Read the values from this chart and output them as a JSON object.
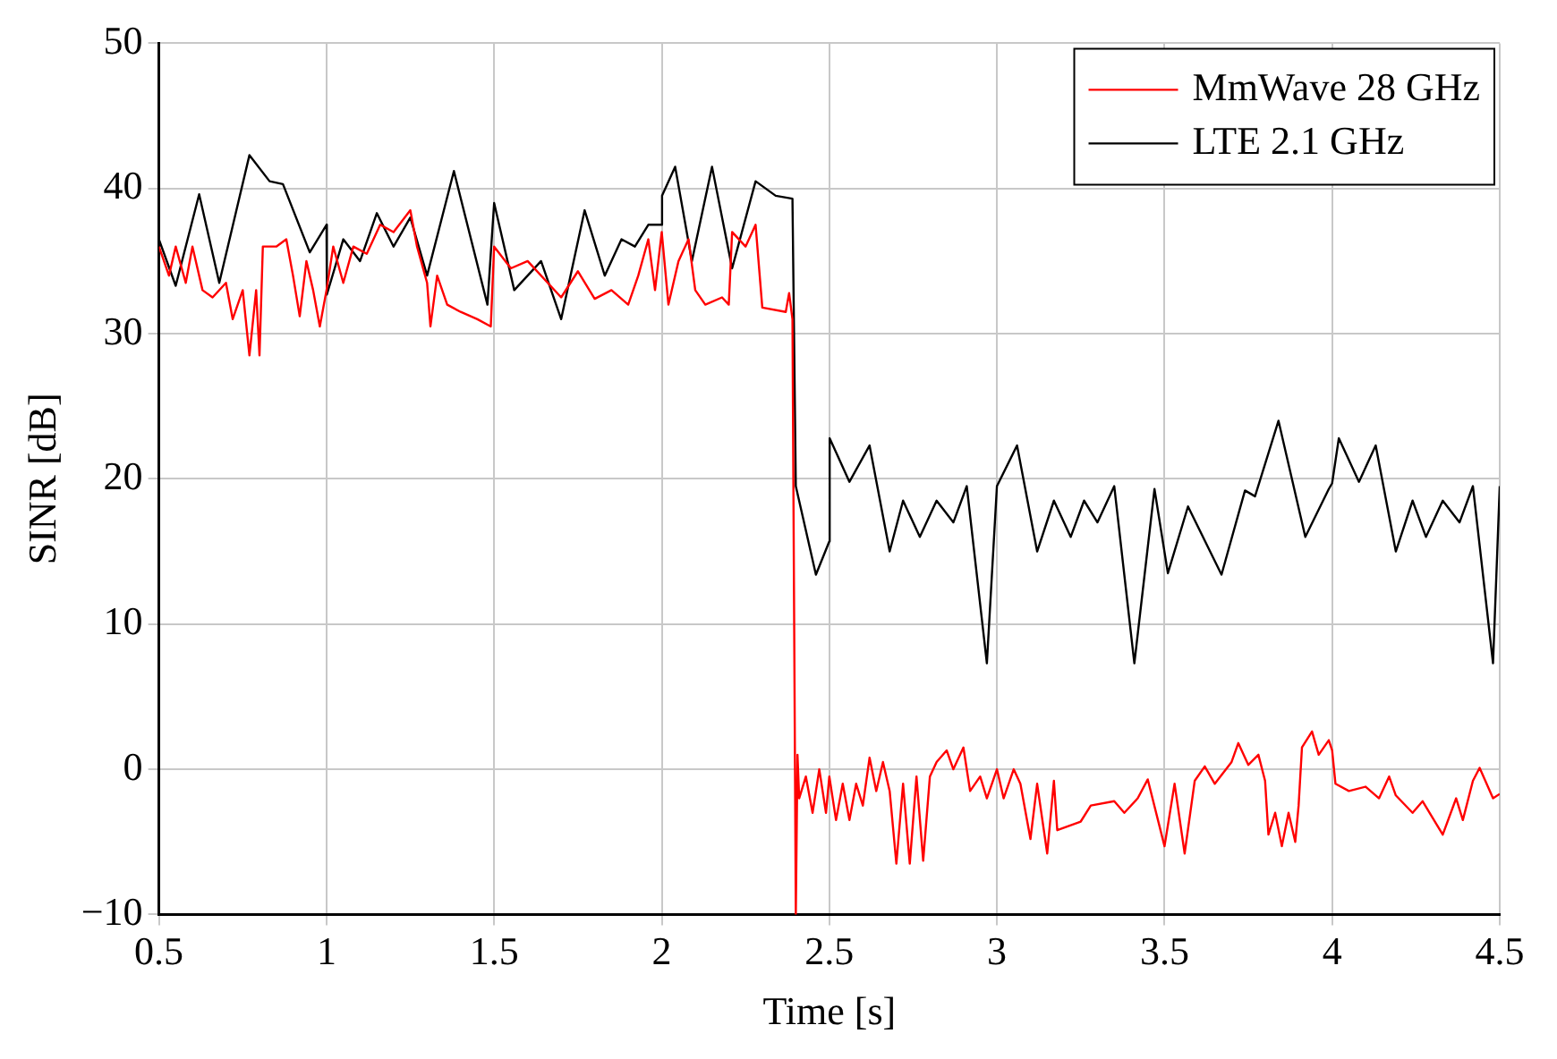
{
  "chart_data": {
    "type": "line",
    "xlabel": "Time [s]",
    "ylabel": "SINR [dB]",
    "xlim": [
      0.5,
      4.5
    ],
    "ylim": [
      -10,
      50
    ],
    "xticks": [
      0.5,
      1,
      1.5,
      2,
      2.5,
      3,
      3.5,
      4,
      4.5
    ],
    "yticks": [
      -10,
      0,
      10,
      20,
      30,
      40,
      50
    ],
    "grid": true,
    "legend": "top right",
    "marker": "none",
    "line_style": "solid",
    "series": [
      {
        "name": "MmWave 28 GHz",
        "color": "#ff0000",
        "x": [
          0.5,
          0.53,
          0.55,
          0.58,
          0.6,
          0.63,
          0.66,
          0.7,
          0.72,
          0.75,
          0.77,
          0.79,
          0.8,
          0.81,
          0.85,
          0.88,
          0.9,
          0.92,
          0.94,
          0.96,
          0.98,
          1.0,
          1.02,
          1.05,
          1.08,
          1.12,
          1.16,
          1.2,
          1.25,
          1.27,
          1.3,
          1.31,
          1.33,
          1.36,
          1.4,
          1.45,
          1.49,
          1.5,
          1.55,
          1.6,
          1.7,
          1.75,
          1.8,
          1.85,
          1.9,
          1.93,
          1.96,
          1.98,
          2.0,
          2.02,
          2.05,
          2.08,
          2.1,
          2.13,
          2.18,
          2.2,
          2.21,
          2.25,
          2.28,
          2.3,
          2.37,
          2.38,
          2.39,
          2.4,
          2.405,
          2.41,
          2.43,
          2.45,
          2.47,
          2.49,
          2.5,
          2.52,
          2.54,
          2.56,
          2.58,
          2.6,
          2.62,
          2.64,
          2.66,
          2.68,
          2.7,
          2.72,
          2.74,
          2.76,
          2.78,
          2.8,
          2.82,
          2.85,
          2.87,
          2.9,
          2.92,
          2.95,
          2.97,
          3.0,
          3.02,
          3.05,
          3.07,
          3.1,
          3.12,
          3.15,
          3.17,
          3.18,
          3.25,
          3.28,
          3.35,
          3.38,
          3.42,
          3.45,
          3.5,
          3.53,
          3.56,
          3.59,
          3.62,
          3.65,
          3.7,
          3.72,
          3.75,
          3.78,
          3.8,
          3.81,
          3.83,
          3.85,
          3.87,
          3.89,
          3.9,
          3.91,
          3.94,
          3.96,
          3.99,
          4.0,
          4.01,
          4.05,
          4.1,
          4.14,
          4.17,
          4.19,
          4.24,
          4.27,
          4.33,
          4.37,
          4.39,
          4.42,
          4.44,
          4.48,
          4.5
        ],
        "values": [
          36,
          34,
          36,
          33.5,
          36,
          33,
          32.5,
          33.5,
          31,
          33,
          28.5,
          33,
          28.5,
          36,
          36,
          36.5,
          34,
          31.2,
          35,
          33,
          30.5,
          33,
          36,
          33.5,
          36,
          35.5,
          37.5,
          37,
          38.5,
          36,
          33.5,
          30.5,
          34,
          32,
          31.5,
          31,
          30.5,
          36,
          34.5,
          35,
          32.5,
          34.3,
          32.4,
          33,
          32,
          34,
          36.5,
          33,
          37,
          32,
          35,
          36.5,
          33,
          32,
          32.5,
          32,
          37,
          36,
          37.5,
          31.8,
          31.5,
          32.8,
          31,
          -10,
          1,
          -2,
          -0.5,
          -3,
          0,
          -3,
          -0.5,
          -3.5,
          -1,
          -3.5,
          -1,
          -2.5,
          0.8,
          -1.5,
          0.5,
          -1.5,
          -6.5,
          -1,
          -6.5,
          -0.5,
          -6.3,
          -0.5,
          0.5,
          1.3,
          0,
          1.5,
          -1.5,
          -0.5,
          -2,
          0,
          -2,
          0,
          -1,
          -4.8,
          -1,
          -5.8,
          -0.8,
          -4.2,
          -3.6,
          -2.5,
          -2.2,
          -3,
          -2,
          -0.7,
          -5.3,
          -1,
          -5.8,
          -0.8,
          0.2,
          -1,
          0.5,
          1.8,
          0.3,
          1,
          -0.8,
          -4.5,
          -3,
          -5.3,
          -3,
          -5,
          -2.5,
          1.5,
          2.6,
          1,
          2,
          1.3,
          -1,
          -1.5,
          -1.2,
          -2,
          -0.5,
          -1.8,
          -3,
          -2.2,
          -4.5,
          -2,
          -3.5,
          -0.8,
          0.1,
          -2,
          -1.7
        ]
      },
      {
        "name": "LTE 2.1 GHz",
        "color": "#000000",
        "x": [
          0.5,
          0.55,
          0.62,
          0.68,
          0.77,
          0.83,
          0.87,
          0.95,
          1.0,
          1.001,
          1.05,
          1.1,
          1.15,
          1.2,
          1.25,
          1.3,
          1.38,
          1.48,
          1.5,
          1.56,
          1.64,
          1.7,
          1.77,
          1.83,
          1.88,
          1.92,
          1.96,
          2.0,
          2.001,
          2.04,
          2.09,
          2.15,
          2.21,
          2.28,
          2.34,
          2.39,
          2.4,
          2.46,
          2.5,
          2.501,
          2.56,
          2.62,
          2.68,
          2.72,
          2.77,
          2.82,
          2.87,
          2.91,
          2.97,
          3.0,
          3.06,
          3.12,
          3.17,
          3.22,
          3.26,
          3.3,
          3.35,
          3.41,
          3.47,
          3.51,
          3.57,
          3.67,
          3.74,
          3.77,
          3.84,
          3.92,
          3.99,
          4.0,
          4.02,
          4.08,
          4.13,
          4.19,
          4.24,
          4.28,
          4.33,
          4.38,
          4.42,
          4.48,
          4.5
        ],
        "values": [
          36.5,
          33.3,
          39.6,
          33.5,
          42.3,
          40.5,
          40.3,
          35.6,
          37.5,
          32.7,
          36.5,
          35,
          38.3,
          36,
          38,
          34,
          41.2,
          32,
          39,
          33,
          35,
          31,
          38.5,
          34,
          36.5,
          36,
          37.5,
          37.5,
          39.5,
          41.5,
          35,
          41.5,
          34.5,
          40.5,
          39.5,
          39.3,
          19.5,
          13.4,
          15.7,
          22.8,
          19.8,
          22.3,
          15,
          18.5,
          16,
          18.5,
          17,
          19.5,
          7.3,
          19.5,
          22.3,
          15,
          18.5,
          16,
          18.5,
          17,
          19.5,
          7.3,
          19.3,
          13.5,
          18.1,
          13.4,
          19.2,
          18.8,
          24,
          16,
          19.3,
          19.7,
          22.8,
          19.8,
          22.3,
          15,
          18.5,
          16,
          18.5,
          17,
          19.5,
          7.3,
          19.5
        ]
      }
    ]
  }
}
